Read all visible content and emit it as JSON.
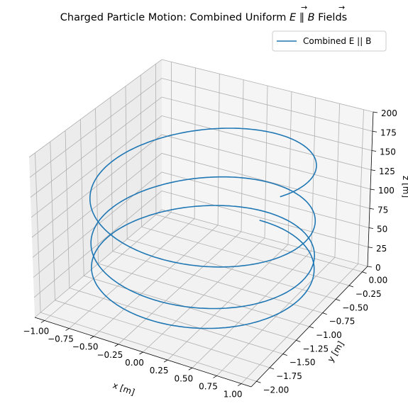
{
  "chart_data": {
    "type": "line",
    "title": "Charged Particle Motion: Combined Uniform E ∥ B Fields",
    "title_parts": {
      "prefix": "Charged Particle Motion: Combined Uniform ",
      "e_symbol": "E",
      "parallel": " ∥ ",
      "b_symbol": "B",
      "suffix": " Fields"
    },
    "xlabel": "x [m]",
    "ylabel": "y [m]",
    "zlabel": "z [m]",
    "xlim": [
      -1.1,
      1.1
    ],
    "ylim": [
      -2.1,
      0.1
    ],
    "zlim": [
      0,
      200
    ],
    "x_ticks": [
      "−1.00",
      "−0.75",
      "−0.50",
      "−0.25",
      "0.00",
      "0.25",
      "0.50",
      "0.75",
      "1.00"
    ],
    "y_ticks": [
      "−2.00",
      "−1.75",
      "−1.50",
      "−1.25",
      "−1.00",
      "−0.75",
      "−0.50",
      "−0.25",
      "0.00"
    ],
    "z_ticks": [
      "0",
      "25",
      "50",
      "75",
      "100",
      "125",
      "150",
      "175",
      "200"
    ],
    "x_tick_values": [
      -1.0,
      -0.75,
      -0.5,
      -0.25,
      0.0,
      0.25,
      0.5,
      0.75,
      1.0
    ],
    "y_tick_values": [
      -2.0,
      -1.75,
      -1.5,
      -1.25,
      -1.0,
      -0.75,
      -0.5,
      -0.25,
      0.0
    ],
    "z_tick_values": [
      0,
      25,
      50,
      75,
      100,
      125,
      150,
      175,
      200
    ],
    "grid": true,
    "legend_position": "top-right",
    "series": [
      {
        "name": "Combined E || B",
        "color": "#1f77b4",
        "model": "helix",
        "center_x": 0,
        "center_y": -1.0,
        "radius": 1.0,
        "turns": 3.3,
        "z_start": 30,
        "z_end": 172
      }
    ]
  }
}
